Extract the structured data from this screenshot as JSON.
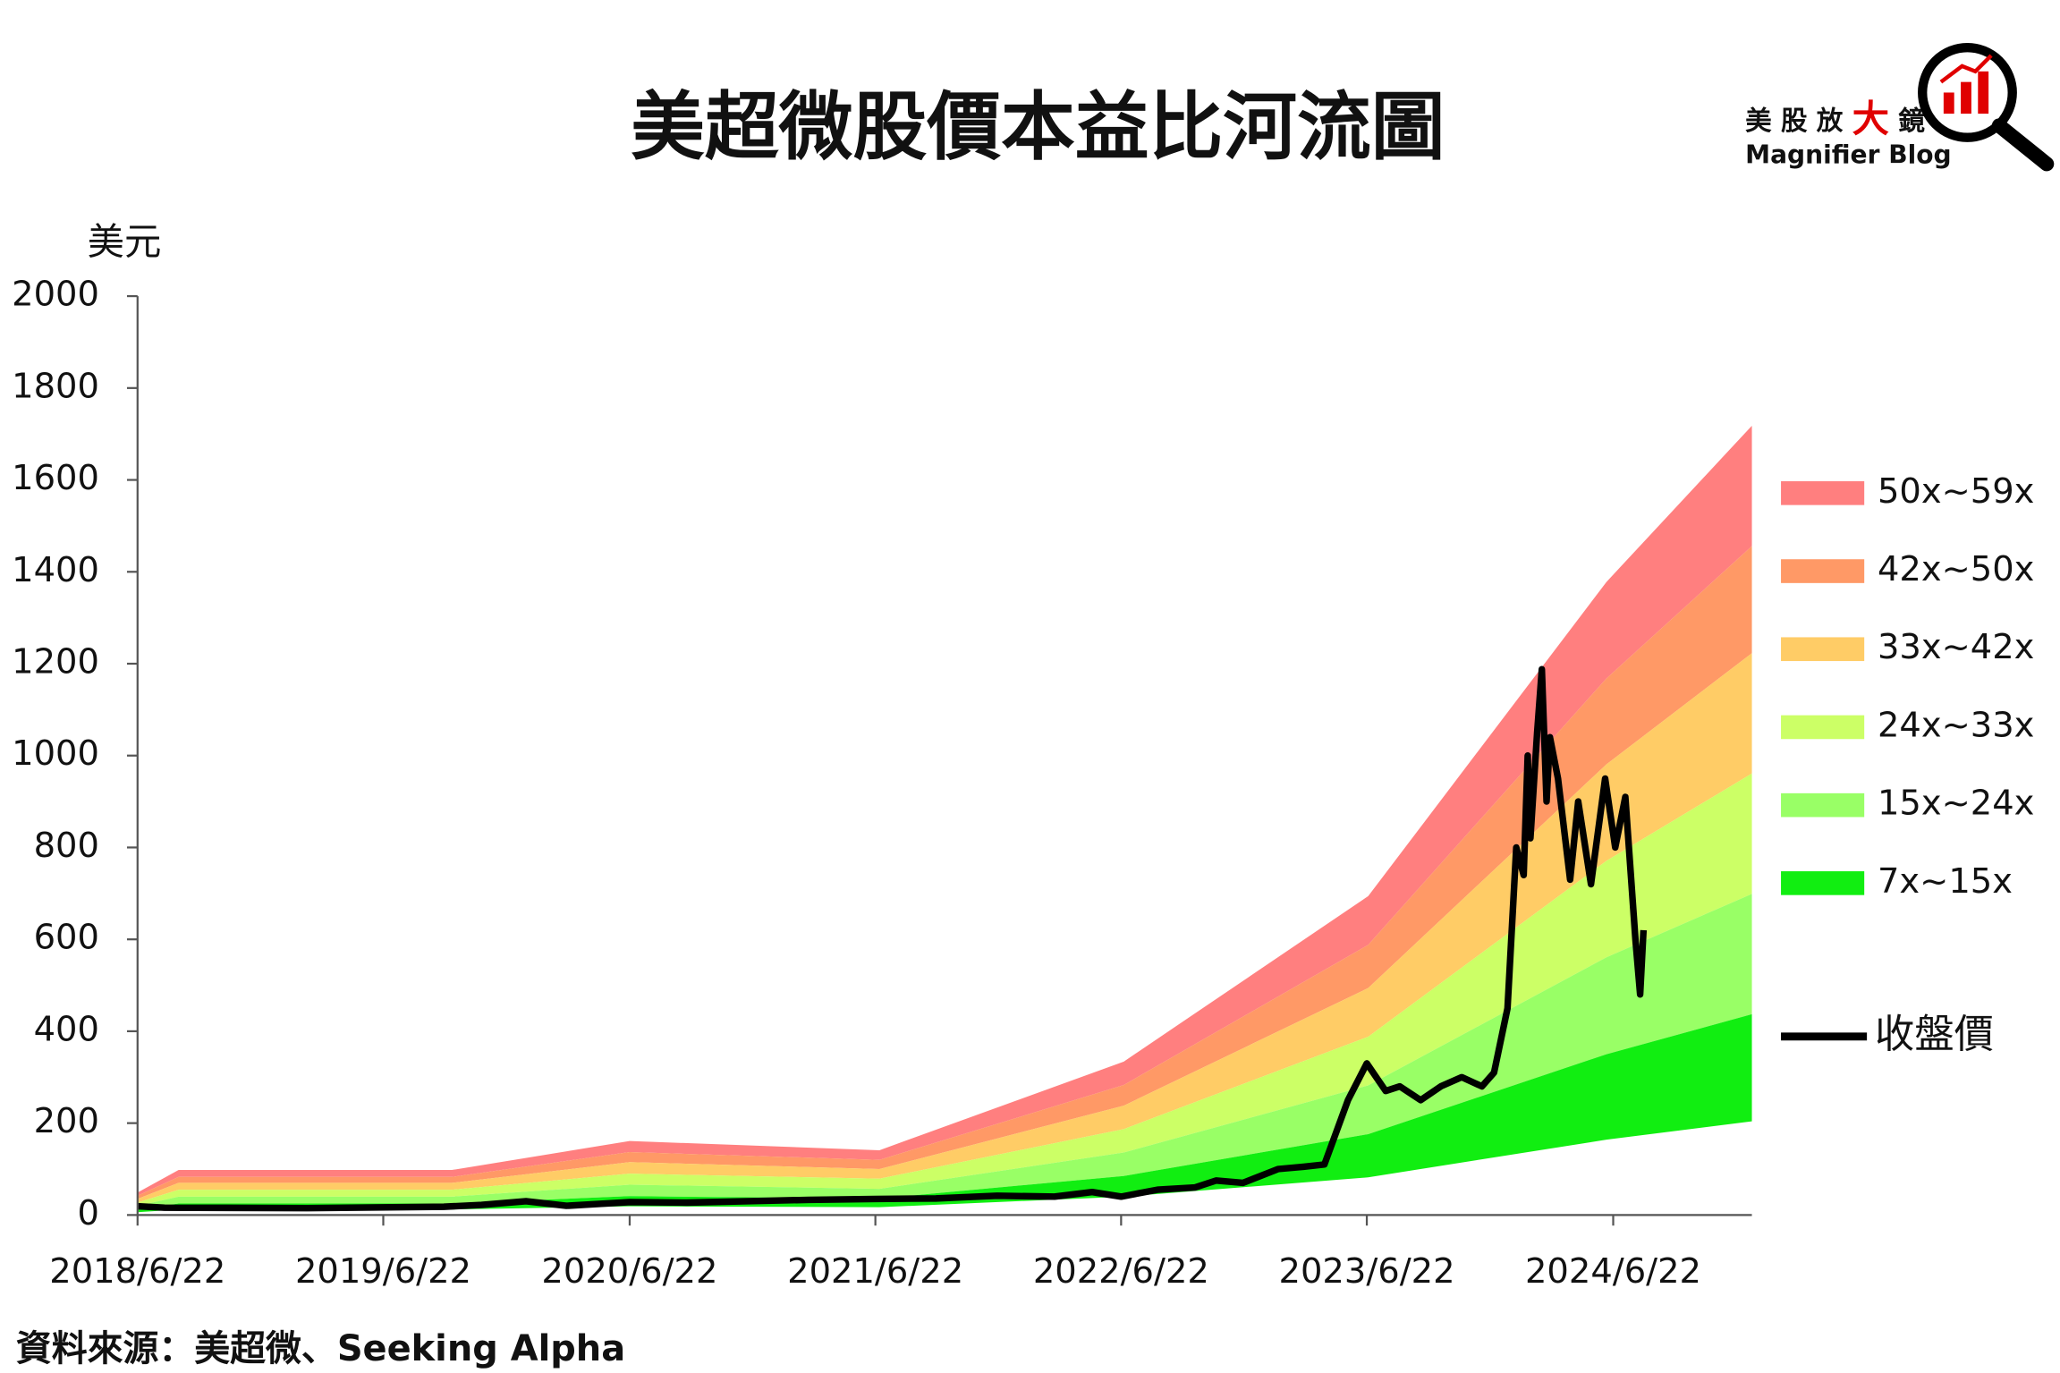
{
  "chart_data": {
    "type": "river",
    "title": "美超微股價本益比河流圖",
    "y_label": "美元",
    "source": "資料來源：美超微、Seeking Alpha",
    "brand": {
      "cn_parts": [
        "美 股 放 ",
        "大",
        " 鏡"
      ],
      "en": "Magnifier Blog"
    },
    "ylim": [
      0,
      2000
    ],
    "yticks": [
      0,
      200,
      400,
      600,
      800,
      1000,
      1200,
      1400,
      1600,
      1800,
      2000
    ],
    "xlim": [
      "2018/6/22",
      "2025/1/14"
    ],
    "xticks": [
      "2018/6/22",
      "2019/6/22",
      "2020/6/22",
      "2021/6/22",
      "2022/6/22",
      "2023/6/22",
      "2024/6/22"
    ],
    "x": [
      "2018/6/22",
      "2018/8/22",
      "2019/10/2",
      "2020/6/22",
      "2021/6/28",
      "2022/6/26",
      "2023/6/24",
      "2024/6/12",
      "2025/1/14"
    ],
    "series": [
      {
        "name": "50x~59x",
        "color": "#ff7f7f",
        "low": [
          42,
          83,
          83,
          137,
          120,
          283,
          588,
          1168,
          1456
        ],
        "high": [
          49,
          98,
          98,
          161,
          141,
          334,
          694,
          1378,
          1718
        ]
      },
      {
        "name": "42x~50x",
        "color": "#ff9966",
        "low": [
          35,
          70,
          70,
          115,
          100,
          238,
          494,
          981,
          1223
        ],
        "high": [
          42,
          83,
          83,
          137,
          120,
          283,
          588,
          1168,
          1456
        ]
      },
      {
        "name": "33x~42x",
        "color": "#ffcc66",
        "low": [
          27,
          55,
          55,
          90,
          79,
          187,
          388,
          771,
          961
        ],
        "high": [
          35,
          70,
          70,
          115,
          100,
          238,
          494,
          981,
          1223
        ]
      },
      {
        "name": "24x~33x",
        "color": "#ccff66",
        "low": [
          20,
          40,
          40,
          66,
          57,
          136,
          282,
          561,
          699
        ],
        "high": [
          27,
          55,
          55,
          90,
          79,
          187,
          388,
          771,
          961
        ]
      },
      {
        "name": "15x~24x",
        "color": "#99ff66",
        "low": [
          12,
          25,
          25,
          41,
          36,
          85,
          176,
          350,
          437
        ],
        "high": [
          20,
          40,
          40,
          66,
          57,
          136,
          282,
          561,
          699
        ]
      },
      {
        "name": "7x~15x",
        "color": "#11ee11",
        "low": [
          6,
          12,
          12,
          19,
          17,
          40,
          82,
          164,
          204
        ],
        "high": [
          12,
          25,
          25,
          41,
          36,
          85,
          176,
          350,
          437
        ]
      }
    ],
    "price": {
      "name": "收盤價",
      "color": "#000000",
      "x": [
        "2018/6/22",
        "2018/8/1",
        "2019/3/1",
        "2019/9/20",
        "2019/11/15",
        "2020/1/20",
        "2020/3/20",
        "2020/6/22",
        "2020/9/15",
        "2020/12/15",
        "2021/3/15",
        "2021/6/22",
        "2021/9/20",
        "2021/12/20",
        "2022/3/15",
        "2022/5/10",
        "2022/6/22",
        "2022/8/15",
        "2022/10/10",
        "2022/11/10",
        "2022/12/20",
        "2023/2/10",
        "2023/3/20",
        "2023/4/20",
        "2023/5/10",
        "2023/5/25",
        "2023/6/22",
        "2023/7/20",
        "2023/8/10",
        "2023/9/10",
        "2023/10/10",
        "2023/11/10",
        "2023/12/10",
        "2023/12/28",
        "2024/1/17",
        "2024/1/30",
        "2024/2/10",
        "2024/2/16",
        "2024/2/20",
        "2024/3/1",
        "2024/3/8",
        "2024/3/15",
        "2024/3/20",
        "2024/4/1",
        "2024/4/19",
        "2024/5/1",
        "2024/5/20",
        "2024/6/10",
        "2024/6/25",
        "2024/7/10",
        "2024/7/25",
        "2024/8/1",
        "2024/8/6"
      ],
      "values": [
        19,
        16,
        15,
        18,
        22,
        30,
        20,
        28,
        27,
        30,
        33,
        35,
        36,
        42,
        40,
        50,
        40,
        55,
        60,
        75,
        70,
        100,
        105,
        110,
        190,
        250,
        330,
        270,
        280,
        250,
        280,
        300,
        280,
        310,
        450,
        800,
        740,
        1000,
        820,
        1050,
        1188,
        900,
        1040,
        950,
        730,
        900,
        720,
        950,
        800,
        910,
        600,
        480,
        620
      ]
    }
  }
}
